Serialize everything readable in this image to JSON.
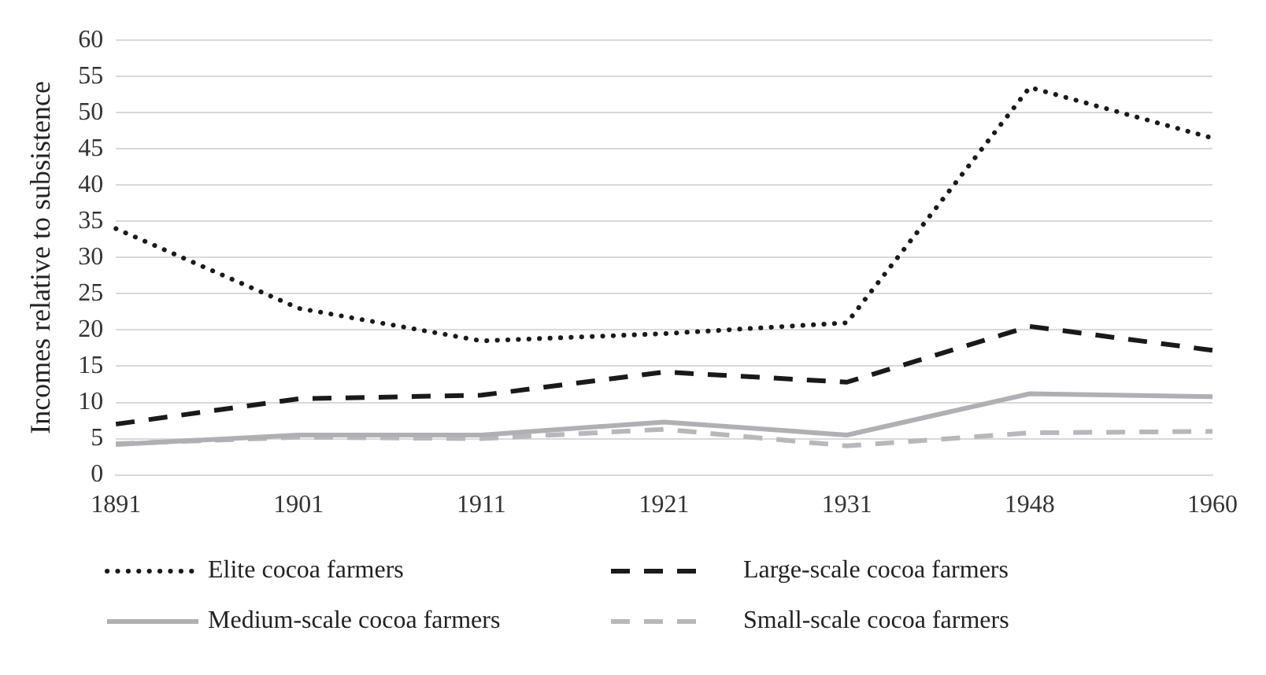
{
  "chart_data": {
    "type": "line",
    "ylabel": "Incomes relative to subsistence",
    "categories": [
      "1891",
      "1901",
      "1911",
      "1921",
      "1931",
      "1948",
      "1960"
    ],
    "ylim": [
      0,
      60
    ],
    "yticks": [
      0,
      5,
      10,
      15,
      20,
      25,
      30,
      35,
      40,
      45,
      50,
      55,
      60
    ],
    "grid": "y",
    "legend": "bottom",
    "marker": "none",
    "series": [
      {
        "name": "Elite cocoa farmers",
        "color": "#1a1a1a",
        "line_style": "dotted",
        "values": [
          34,
          23,
          18.5,
          19.5,
          21,
          53.5,
          46.5
        ]
      },
      {
        "name": "Large-scale cocoa farmers",
        "color": "#1a1a1a",
        "line_style": "dashed",
        "values": [
          7,
          10.5,
          11,
          14.2,
          12.8,
          20.5,
          17.2
        ]
      },
      {
        "name": "Medium-scale cocoa farmers",
        "color": "#b0b0b4",
        "line_style": "solid",
        "values": [
          4.2,
          5.5,
          5.5,
          7.3,
          5.5,
          11.2,
          10.8
        ]
      },
      {
        "name": "Small-scale cocoa farmers",
        "color": "#b8b8bc",
        "line_style": "dashed",
        "values": [
          4.3,
          5.2,
          5.0,
          6.3,
          4.0,
          5.8,
          6.0
        ]
      }
    ]
  }
}
